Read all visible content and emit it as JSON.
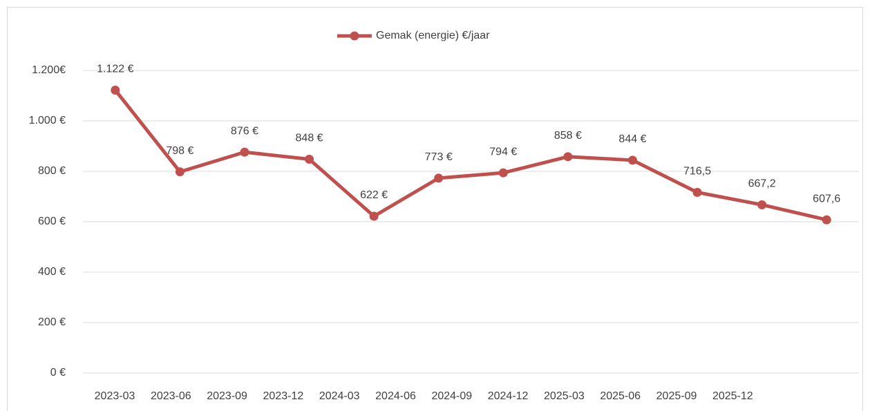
{
  "chart_data": {
    "type": "line",
    "categories": [
      "2023-03",
      "2023-06",
      "2023-09",
      "2023-12",
      "2024-03",
      "2024-06",
      "2024-09",
      "2024-12",
      "2025-03",
      "2025-06",
      "2025-09",
      "2025-12"
    ],
    "series": [
      {
        "name": "Gemak (energie) €/jaar",
        "color": "#c0504d",
        "values": [
          1122,
          798,
          876,
          848,
          622,
          773,
          794,
          858,
          844,
          716.5,
          667.2,
          607.6
        ],
        "value_labels": [
          "1.122 €",
          "798 €",
          "876 €",
          "848 €",
          "622 €",
          "773 €",
          "794 €",
          "858 €",
          "844 €",
          "716,5",
          "667,2",
          "607,6"
        ]
      }
    ],
    "ylim": [
      0,
      1200
    ],
    "yticks": [
      {
        "value": 0,
        "label": "0 €"
      },
      {
        "value": 200,
        "label": "200 €"
      },
      {
        "value": 400,
        "label": "400 €"
      },
      {
        "value": 600,
        "label": "600 €"
      },
      {
        "value": 800,
        "label": "800 €"
      },
      {
        "value": 1000,
        "label": "1.000 €"
      },
      {
        "value": 1200,
        "label": "1.200€"
      }
    ],
    "grid": true,
    "legend": "top"
  }
}
